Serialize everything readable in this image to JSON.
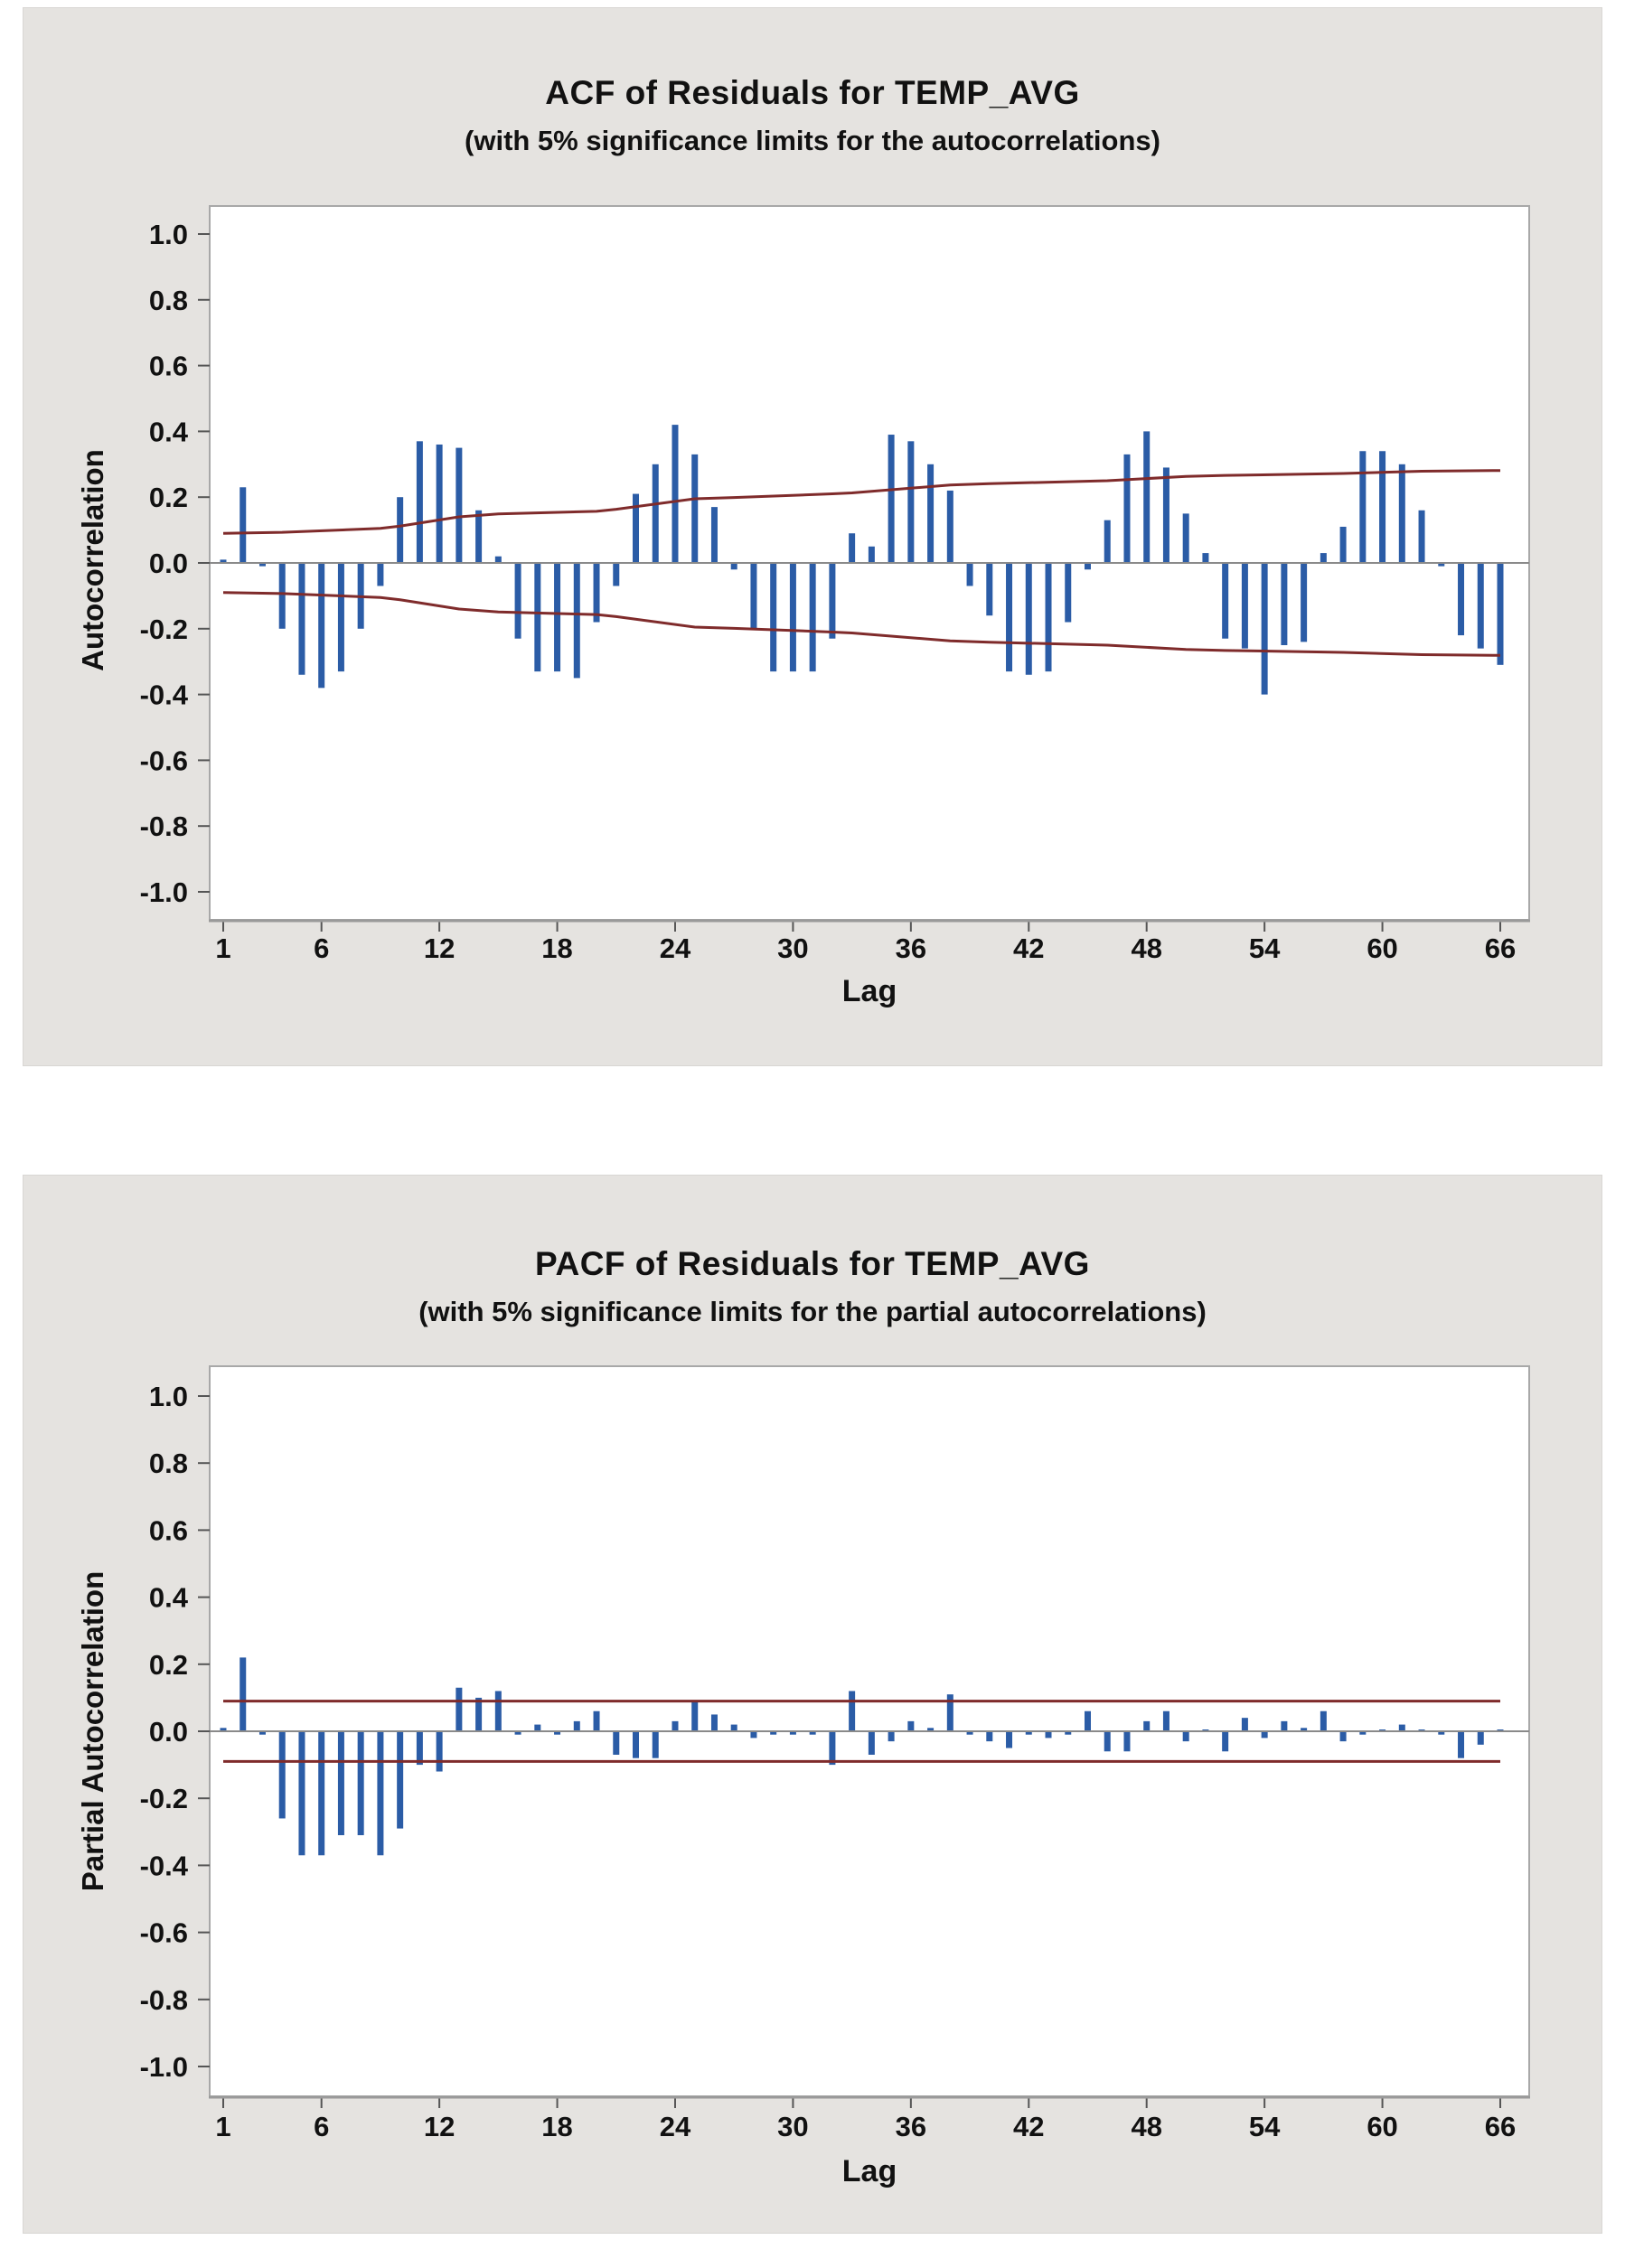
{
  "page": {
    "background": "#ffffff",
    "panel_background": "#e5e3e0",
    "text_color": "#111111"
  },
  "chart_data": [
    {
      "id": "acf",
      "type": "bar",
      "title": "ACF of Residuals for TEMP_AVG",
      "subtitle": "(with 5% significance limits for the autocorrelations)",
      "ylabel": "Autocorrelation",
      "xlabel": "Lag",
      "ylim": [
        -1.0,
        1.0
      ],
      "grid": "off",
      "x_ticks": [
        1,
        6,
        12,
        18,
        24,
        30,
        36,
        42,
        48,
        54,
        60,
        66
      ],
      "y_ticks": [
        "1.0",
        "0.8",
        "0.6",
        "0.4",
        "0.2",
        "0.0",
        "-0.2",
        "-0.4",
        "-0.6",
        "-0.8",
        "-1.0"
      ],
      "lags": [
        1,
        2,
        3,
        4,
        5,
        6,
        7,
        8,
        9,
        10,
        11,
        12,
        13,
        14,
        15,
        16,
        17,
        18,
        19,
        20,
        21,
        22,
        23,
        24,
        25,
        26,
        27,
        28,
        29,
        30,
        31,
        32,
        33,
        34,
        35,
        36,
        37,
        38,
        39,
        40,
        41,
        42,
        43,
        44,
        45,
        46,
        47,
        48,
        49,
        50,
        51,
        52,
        53,
        54,
        55,
        56,
        57,
        58,
        59,
        60,
        61,
        62,
        63,
        64,
        65,
        66
      ],
      "values": [
        0.01,
        0.23,
        -0.01,
        -0.2,
        -0.34,
        -0.38,
        -0.33,
        -0.2,
        -0.07,
        0.2,
        0.37,
        0.36,
        0.35,
        0.16,
        0.02,
        -0.23,
        -0.33,
        -0.33,
        -0.35,
        -0.18,
        -0.07,
        0.21,
        0.3,
        0.42,
        0.33,
        0.17,
        -0.02,
        -0.2,
        -0.33,
        -0.33,
        -0.33,
        -0.23,
        0.09,
        0.05,
        0.39,
        0.37,
        0.3,
        0.22,
        -0.07,
        -0.16,
        -0.33,
        -0.34,
        -0.33,
        -0.18,
        -0.02,
        0.13,
        0.33,
        0.4,
        0.29,
        0.15,
        0.03,
        -0.23,
        -0.26,
        -0.4,
        -0.25,
        -0.24,
        0.03,
        0.11,
        0.34,
        0.34,
        0.3,
        0.16,
        -0.01,
        -0.22,
        -0.26,
        -0.31
      ],
      "significance_limits": {
        "kind": "curve",
        "symmetric": true,
        "points": [
          [
            1,
            0.09
          ],
          [
            4,
            0.093
          ],
          [
            9,
            0.105
          ],
          [
            10,
            0.112
          ],
          [
            13,
            0.14
          ],
          [
            15,
            0.149
          ],
          [
            20,
            0.157
          ],
          [
            21,
            0.163
          ],
          [
            25,
            0.195
          ],
          [
            27,
            0.199
          ],
          [
            32,
            0.21
          ],
          [
            33,
            0.213
          ],
          [
            38,
            0.237
          ],
          [
            40,
            0.241
          ],
          [
            44,
            0.247
          ],
          [
            46,
            0.25
          ],
          [
            50,
            0.263
          ],
          [
            52,
            0.266
          ],
          [
            57,
            0.271
          ],
          [
            58,
            0.272
          ],
          [
            62,
            0.279
          ],
          [
            66,
            0.281
          ]
        ]
      },
      "colors": {
        "bar": "#2b5ca6",
        "limit_line": "#7f2b2b",
        "zero_line": "#8a8a8a",
        "plot_border": "#a8a8a8",
        "plot_background": "#ffffff"
      }
    },
    {
      "id": "pacf",
      "type": "bar",
      "title": "PACF of Residuals for TEMP_AVG",
      "subtitle": "(with 5% significance limits for the partial autocorrelations)",
      "ylabel": "Partial Autocorrelation",
      "xlabel": "Lag",
      "ylim": [
        -1.0,
        1.0
      ],
      "grid": "off",
      "x_ticks": [
        1,
        6,
        12,
        18,
        24,
        30,
        36,
        42,
        48,
        54,
        60,
        66
      ],
      "y_ticks": [
        "1.0",
        "0.8",
        "0.6",
        "0.4",
        "0.2",
        "0.0",
        "-0.2",
        "-0.4",
        "-0.6",
        "-0.8",
        "-1.0"
      ],
      "lags": [
        1,
        2,
        3,
        4,
        5,
        6,
        7,
        8,
        9,
        10,
        11,
        12,
        13,
        14,
        15,
        16,
        17,
        18,
        19,
        20,
        21,
        22,
        23,
        24,
        25,
        26,
        27,
        28,
        29,
        30,
        31,
        32,
        33,
        34,
        35,
        36,
        37,
        38,
        39,
        40,
        41,
        42,
        43,
        44,
        45,
        46,
        47,
        48,
        49,
        50,
        51,
        52,
        53,
        54,
        55,
        56,
        57,
        58,
        59,
        60,
        61,
        62,
        63,
        64,
        65,
        66
      ],
      "values": [
        0.01,
        0.22,
        -0.01,
        -0.26,
        -0.37,
        -0.37,
        -0.31,
        -0.31,
        -0.37,
        -0.29,
        -0.1,
        -0.12,
        0.13,
        0.1,
        0.12,
        -0.01,
        0.02,
        -0.01,
        0.03,
        0.06,
        -0.07,
        -0.08,
        -0.08,
        0.03,
        0.09,
        0.05,
        0.02,
        -0.02,
        -0.01,
        -0.01,
        -0.01,
        -0.1,
        0.12,
        -0.07,
        -0.03,
        0.03,
        0.01,
        0.11,
        -0.01,
        -0.03,
        -0.05,
        -0.01,
        -0.02,
        -0.01,
        0.06,
        -0.06,
        -0.06,
        0.03,
        0.06,
        -0.03,
        0.0,
        -0.06,
        0.04,
        -0.02,
        0.03,
        0.01,
        0.06,
        -0.03,
        -0.01,
        0.0,
        0.02,
        0.0,
        -0.01,
        -0.08,
        -0.04,
        0.0
      ],
      "significance_limits": {
        "kind": "constant",
        "symmetric": true,
        "value": 0.09
      },
      "colors": {
        "bar": "#2b5ca6",
        "limit_line": "#7f2b2b",
        "zero_line": "#8a8a8a",
        "plot_border": "#a8a8a8",
        "plot_background": "#ffffff"
      }
    }
  ]
}
